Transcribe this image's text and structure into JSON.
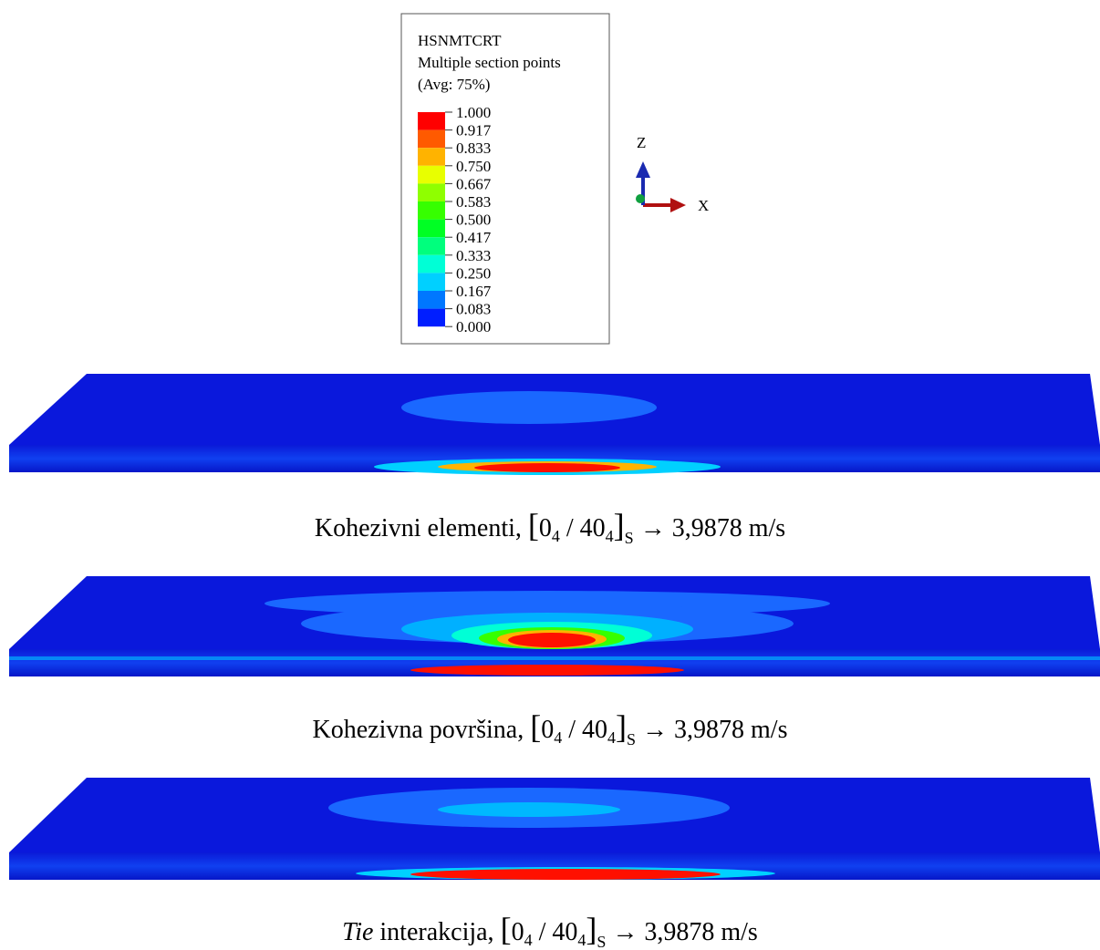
{
  "legend": {
    "variable": "HSNMTCRT",
    "subtitle": "Multiple section points",
    "averaging": "(Avg: 75%)",
    "labels": [
      "1.000",
      "0.917",
      "0.833",
      "0.750",
      "0.667",
      "0.583",
      "0.500",
      "0.417",
      "0.333",
      "0.250",
      "0.167",
      "0.083",
      "0.000"
    ],
    "colors": [
      "#ff0000",
      "#ff5a00",
      "#ffb300",
      "#e8ff00",
      "#8fff00",
      "#36ff00",
      "#00ff24",
      "#00ff7d",
      "#00ffd6",
      "#00d0ff",
      "#0077ff",
      "#001eff"
    ]
  },
  "axes": {
    "z": "Z",
    "x": "X"
  },
  "captions": [
    {
      "label": "Kohezivni elementi,",
      "layup": {
        "ply1": "0",
        "ply1_count": "4",
        "separator": "/",
        "ply2": "40",
        "ply2_count": "4",
        "symmetry": "S"
      },
      "arrow": "→",
      "velocity": "3,9878 m/s"
    },
    {
      "label": "Kohezivna površina,",
      "layup": {
        "ply1": "0",
        "ply1_count": "4",
        "separator": "/",
        "ply2": "40",
        "ply2_count": "4",
        "symmetry": "S"
      },
      "arrow": "→",
      "velocity": "3,9878 m/s"
    },
    {
      "label_emphasis": "Tie",
      "label": "interakcija,",
      "layup": {
        "ply1": "0",
        "ply1_count": "4",
        "separator": "/",
        "ply2": "40",
        "ply2_count": "4",
        "symmetry": "S"
      },
      "arrow": "→",
      "velocity": "3,9878 m/s"
    }
  ]
}
